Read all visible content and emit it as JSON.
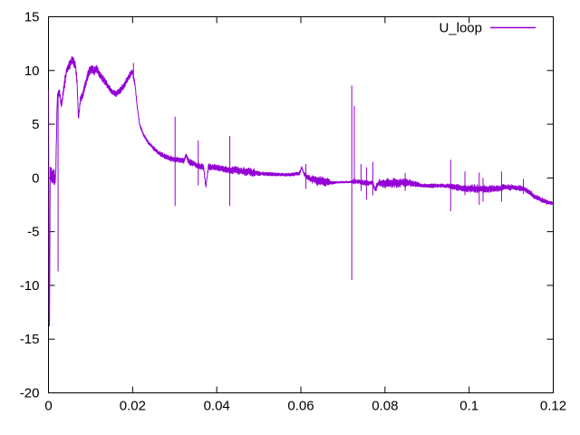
{
  "chart_data": {
    "type": "line",
    "title": "",
    "xlabel": "",
    "ylabel": "",
    "grid": false,
    "background_color": "#ffffff",
    "axis_color": "#000000",
    "legend_position": "top-right-inside",
    "xlim": [
      0,
      0.12
    ],
    "ylim": [
      -20,
      15
    ],
    "xticks": {
      "values": [
        0,
        0.02,
        0.04,
        0.06,
        0.08,
        0.1,
        0.12
      ],
      "labels": [
        "0",
        "0.02",
        "0.04",
        "0.06",
        "0.08",
        "0.1",
        "0.12"
      ]
    },
    "yticks": {
      "values": [
        15,
        10,
        5,
        0,
        -5,
        -10,
        -15,
        -20
      ],
      "labels": [
        "15",
        "10",
        "5",
        "0",
        "-5",
        "-10",
        "-15",
        "-20"
      ]
    },
    "series": [
      {
        "name": "U_loop",
        "color": "#9400d3",
        "representation": "noisy-envelope-plus-spikes",
        "envelope_points_format": "[x, center_y, noise_amplitude]",
        "envelope": [
          [
            0.0,
            8.2,
            0
          ],
          [
            0.0002,
            -17.5,
            0
          ],
          [
            0.0004,
            0.5,
            0.8
          ],
          [
            0.001,
            0.1,
            0.9
          ],
          [
            0.0017,
            -0.1,
            0.7
          ],
          [
            0.0021,
            7.6,
            0.35
          ],
          [
            0.0026,
            7.9,
            0.45
          ],
          [
            0.0031,
            6.7,
            0.4
          ],
          [
            0.0037,
            8.5,
            0.5
          ],
          [
            0.0043,
            10.0,
            0.5
          ],
          [
            0.005,
            10.5,
            0.5
          ],
          [
            0.0057,
            11.0,
            0.45
          ],
          [
            0.0064,
            10.5,
            0.4
          ],
          [
            0.0068,
            8.9,
            0.3
          ],
          [
            0.00712,
            5.5,
            0.2
          ],
          [
            0.0076,
            7.4,
            0.35
          ],
          [
            0.0081,
            7.6,
            0.4
          ],
          [
            0.0088,
            8.8,
            0.45
          ],
          [
            0.0096,
            9.9,
            0.5
          ],
          [
            0.0102,
            10.2,
            0.45
          ],
          [
            0.0108,
            9.9,
            0.4
          ],
          [
            0.0113,
            10.2,
            0.45
          ],
          [
            0.012,
            9.8,
            0.4
          ],
          [
            0.013,
            9.2,
            0.35
          ],
          [
            0.0141,
            8.6,
            0.3
          ],
          [
            0.0152,
            8.0,
            0.3
          ],
          [
            0.0161,
            7.85,
            0.3
          ],
          [
            0.017,
            8.1,
            0.3
          ],
          [
            0.0181,
            8.7,
            0.3
          ],
          [
            0.0191,
            9.4,
            0.28
          ],
          [
            0.02,
            9.9,
            0.3
          ],
          [
            0.0206,
            8.6,
            0.2
          ],
          [
            0.0211,
            6.6,
            0.15
          ],
          [
            0.0217,
            4.9,
            0.15
          ],
          [
            0.0226,
            4.0,
            0.15
          ],
          [
            0.0237,
            3.3,
            0.15
          ],
          [
            0.025,
            2.75,
            0.18
          ],
          [
            0.0263,
            2.3,
            0.2
          ],
          [
            0.0275,
            2.05,
            0.25
          ],
          [
            0.029,
            1.8,
            0.28
          ],
          [
            0.0306,
            1.7,
            0.25
          ],
          [
            0.0322,
            1.6,
            0.25
          ],
          [
            0.0327,
            2.15,
            0.15
          ],
          [
            0.0333,
            1.5,
            0.28
          ],
          [
            0.0346,
            1.3,
            0.3
          ],
          [
            0.036,
            1.1,
            0.3
          ],
          [
            0.0369,
            1.0,
            0.25
          ],
          [
            0.0374,
            -0.85,
            0.15
          ],
          [
            0.038,
            1.05,
            0.3
          ],
          [
            0.04,
            0.95,
            0.3
          ],
          [
            0.0425,
            0.78,
            0.3
          ],
          [
            0.044,
            0.72,
            0.35
          ],
          [
            0.0465,
            0.62,
            0.4
          ],
          [
            0.049,
            0.5,
            0.35
          ],
          [
            0.0506,
            0.4,
            0.18
          ],
          [
            0.054,
            0.33,
            0.15
          ],
          [
            0.0576,
            0.3,
            0.15
          ],
          [
            0.0597,
            0.45,
            0.15
          ],
          [
            0.0602,
            1.0,
            0.1
          ],
          [
            0.0608,
            0.35,
            0.15
          ],
          [
            0.0618,
            -0.05,
            0.3
          ],
          [
            0.064,
            -0.25,
            0.45
          ],
          [
            0.0661,
            -0.35,
            0.4
          ],
          [
            0.0675,
            -0.45,
            0.15
          ],
          [
            0.069,
            -0.4,
            0.08
          ],
          [
            0.0716,
            -0.38,
            0.08
          ],
          [
            0.0725,
            -0.3,
            0.2
          ],
          [
            0.074,
            -0.35,
            0.22
          ],
          [
            0.0758,
            -0.5,
            0.25
          ],
          [
            0.077,
            -0.45,
            0.2
          ],
          [
            0.0777,
            -1.1,
            0.3
          ],
          [
            0.0784,
            -0.5,
            0.35
          ],
          [
            0.08,
            -0.5,
            0.45
          ],
          [
            0.083,
            -0.45,
            0.45
          ],
          [
            0.0856,
            -0.45,
            0.35
          ],
          [
            0.0872,
            -0.55,
            0.3
          ],
          [
            0.0884,
            -0.72,
            0.18
          ],
          [
            0.095,
            -0.73,
            0.18
          ],
          [
            0.0962,
            -0.85,
            0.28
          ],
          [
            0.099,
            -0.95,
            0.32
          ],
          [
            0.1016,
            -1.0,
            0.4
          ],
          [
            0.104,
            -1.05,
            0.35
          ],
          [
            0.1064,
            -1.0,
            0.3
          ],
          [
            0.1088,
            -0.85,
            0.28
          ],
          [
            0.1108,
            -0.9,
            0.28
          ],
          [
            0.1128,
            -1.0,
            0.25
          ],
          [
            0.1143,
            -1.3,
            0.25
          ],
          [
            0.1157,
            -1.8,
            0.25
          ],
          [
            0.1173,
            -2.05,
            0.25
          ],
          [
            0.1188,
            -2.3,
            0.2
          ],
          [
            0.12,
            -2.35,
            0.12
          ]
        ],
        "spikes_format": "[x, y_top, y_bottom]",
        "spikes": [
          [
            0.00228,
            8.0,
            -8.7
          ],
          [
            0.0202,
            10.7,
            9.2
          ],
          [
            0.0301,
            5.7,
            -2.6
          ],
          [
            0.0356,
            3.5,
            -0.7
          ],
          [
            0.0431,
            3.9,
            -2.6
          ],
          [
            0.0612,
            1.3,
            -1.0
          ],
          [
            0.0721,
            8.6,
            -9.5
          ],
          [
            0.0727,
            6.7,
            -0.6
          ],
          [
            0.0743,
            1.3,
            -1.2
          ],
          [
            0.0756,
            1.0,
            -2.0
          ],
          [
            0.0771,
            1.5,
            -1.6
          ],
          [
            0.0848,
            0.45,
            -1.2
          ],
          [
            0.0956,
            1.7,
            -3.1
          ],
          [
            0.099,
            0.6,
            -1.6
          ],
          [
            0.1024,
            0.5,
            -2.5
          ],
          [
            0.1033,
            0.0,
            -2.2
          ],
          [
            0.1077,
            0.6,
            -2.2
          ],
          [
            0.1129,
            -0.1,
            -1.5
          ]
        ]
      }
    ]
  }
}
